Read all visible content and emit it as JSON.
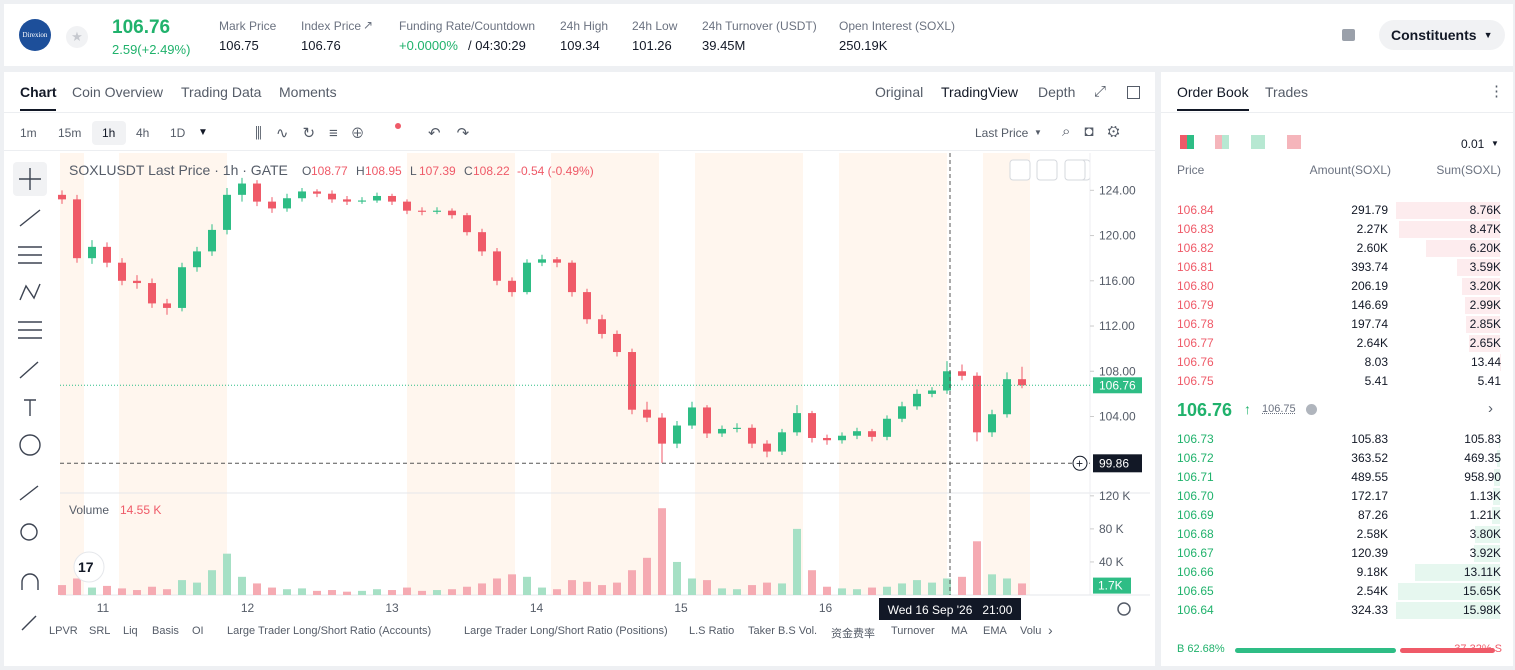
{
  "header": {
    "logo": "Direxion",
    "price": "106.76",
    "change": "2.59(+2.49%)",
    "stats": [
      {
        "label": "Mark Price",
        "value": "106.75"
      },
      {
        "label": "Index Price",
        "value": "106.76"
      },
      {
        "label": "Funding Rate/Countdown",
        "value": "+0.0000%",
        "extra": "/ 04:30:29"
      },
      {
        "label": "24h High",
        "value": "109.34"
      },
      {
        "label": "24h Low",
        "value": "101.26"
      },
      {
        "label": "24h Turnover (USDT)",
        "value": "39.45M"
      },
      {
        "label": "Open Interest (SOXL)",
        "value": "250.19K"
      }
    ],
    "button": "Constituents"
  },
  "tabs": [
    "Chart",
    "Coin Overview",
    "Trading Data",
    "Moments"
  ],
  "views": [
    "Original",
    "TradingView",
    "Depth"
  ],
  "intervals": [
    "1m",
    "15m",
    "1h",
    "4h",
    "1D"
  ],
  "price_source": "Last Price",
  "indicators": [
    "LPVR",
    "SRL",
    "Liq",
    "Basis",
    "OI",
    "Large Trader Long/Short Ratio (Accounts)",
    "Large Trader Long/Short Ratio (Positions)",
    "L.S Ratio",
    "Taker B.S Vol.",
    "资金费率",
    "Turnover",
    "MA",
    "EMA",
    "Volu"
  ],
  "chart_data": {
    "type": "candlestick",
    "title": "SOXLUSDT Last Price · 1h · GATE",
    "legend": [
      {
        "key": "O",
        "value": 108.77
      },
      {
        "key": "H",
        "value": 108.95
      },
      {
        "key": "L",
        "value": 107.39
      },
      {
        "key": "C",
        "value": 108.22
      }
    ],
    "legend_change": "-0.54 (-0.49%)",
    "up_color": "#2ebd85",
    "down_color": "#ef5a68",
    "categories": [
      "11",
      "12",
      "13",
      "14",
      "15",
      "16"
    ],
    "ohlc": [
      [
        123.6,
        124.0,
        122.8,
        123.2
      ],
      [
        123.2,
        123.6,
        117.6,
        118.0
      ],
      [
        118.0,
        119.6,
        117.5,
        119.0
      ],
      [
        119.0,
        119.4,
        117.2,
        117.6
      ],
      [
        117.6,
        118.0,
        115.6,
        116.0
      ],
      [
        116.0,
        116.5,
        115.3,
        115.8
      ],
      [
        115.8,
        116.2,
        113.6,
        114.0
      ],
      [
        114.0,
        114.4,
        113.0,
        113.6
      ],
      [
        113.6,
        117.6,
        113.3,
        117.2
      ],
      [
        117.2,
        119.0,
        116.8,
        118.6
      ],
      [
        118.6,
        121.0,
        118.2,
        120.5
      ],
      [
        120.5,
        124.2,
        120.1,
        123.6
      ],
      [
        123.6,
        125.1,
        123.0,
        124.6
      ],
      [
        124.6,
        124.9,
        122.6,
        123.0
      ],
      [
        123.0,
        123.4,
        122.0,
        122.4
      ],
      [
        122.4,
        123.7,
        122.1,
        123.3
      ],
      [
        123.3,
        124.2,
        123.0,
        123.9
      ],
      [
        123.9,
        124.1,
        123.4,
        123.7
      ],
      [
        123.7,
        124.0,
        122.9,
        123.2
      ],
      [
        123.2,
        123.5,
        122.7,
        123.0
      ],
      [
        123.0,
        123.4,
        122.8,
        123.1
      ],
      [
        123.1,
        123.8,
        122.9,
        123.5
      ],
      [
        123.5,
        123.7,
        122.7,
        123.0
      ],
      [
        123.0,
        123.2,
        121.9,
        122.2
      ],
      [
        122.2,
        122.5,
        121.8,
        122.1
      ],
      [
        122.1,
        122.5,
        121.9,
        122.2
      ],
      [
        122.2,
        122.4,
        121.5,
        121.8
      ],
      [
        121.8,
        122.0,
        120.0,
        120.3
      ],
      [
        120.3,
        120.6,
        118.2,
        118.6
      ],
      [
        118.6,
        118.9,
        115.6,
        116.0
      ],
      [
        116.0,
        116.3,
        114.6,
        115.0
      ],
      [
        115.0,
        117.9,
        114.8,
        117.6
      ],
      [
        117.6,
        118.3,
        117.3,
        117.9
      ],
      [
        117.9,
        118.1,
        117.2,
        117.6
      ],
      [
        117.6,
        117.8,
        114.6,
        115.0
      ],
      [
        115.0,
        115.3,
        112.2,
        112.6
      ],
      [
        112.6,
        113.0,
        110.9,
        111.3
      ],
      [
        111.3,
        111.6,
        109.3,
        109.7
      ],
      [
        109.7,
        110.0,
        104.2,
        104.6
      ],
      [
        104.6,
        105.3,
        103.5,
        103.9
      ],
      [
        103.9,
        104.3,
        99.9,
        101.6
      ],
      [
        101.6,
        103.6,
        101.2,
        103.2
      ],
      [
        103.2,
        105.3,
        102.9,
        104.8
      ],
      [
        104.8,
        105.0,
        102.1,
        102.5
      ],
      [
        102.5,
        103.2,
        102.2,
        102.9
      ],
      [
        102.9,
        103.4,
        102.6,
        103.0
      ],
      [
        103.0,
        103.3,
        101.2,
        101.6
      ],
      [
        101.6,
        101.9,
        100.4,
        100.9
      ],
      [
        100.9,
        102.9,
        100.6,
        102.6
      ],
      [
        102.6,
        105.0,
        102.3,
        104.3
      ],
      [
        104.3,
        104.5,
        101.7,
        102.1
      ],
      [
        102.1,
        102.4,
        101.5,
        101.9
      ],
      [
        101.9,
        102.6,
        101.6,
        102.3
      ],
      [
        102.3,
        103.0,
        102.0,
        102.7
      ],
      [
        102.7,
        102.9,
        101.8,
        102.2
      ],
      [
        102.2,
        104.1,
        101.9,
        103.8
      ],
      [
        103.8,
        105.3,
        103.5,
        104.9
      ],
      [
        104.9,
        106.4,
        104.6,
        106.0
      ],
      [
        106.0,
        106.6,
        105.7,
        106.3
      ],
      [
        106.3,
        108.9,
        106.0,
        108.0
      ],
      [
        108.0,
        108.6,
        107.2,
        107.6
      ],
      [
        107.6,
        107.9,
        101.8,
        102.6
      ],
      [
        102.6,
        104.6,
        102.2,
        104.2
      ],
      [
        104.2,
        107.9,
        103.9,
        107.3
      ],
      [
        107.3,
        108.4,
        106.5,
        106.76
      ]
    ],
    "ylim": [
      97.5,
      127.3
    ],
    "yticks": [
      {
        "value": 104,
        "label": "104.00"
      },
      {
        "value": 108,
        "label": "108.00"
      },
      {
        "value": 112,
        "label": "112.00"
      },
      {
        "value": 116,
        "label": "116.00"
      },
      {
        "value": 120,
        "label": "120.00"
      },
      {
        "value": 124,
        "label": "124.00"
      }
    ],
    "last_price": {
      "value": 106.76,
      "label": "106.76"
    },
    "crosshair": {
      "value": 99.86,
      "label": "99.86",
      "time": "Wed 16 Sep '26   21:00"
    },
    "volume": {
      "title": "Volume",
      "current": "14.55 K",
      "values": [
        12000,
        20000,
        9000,
        11000,
        8000,
        6000,
        10000,
        7000,
        18000,
        15000,
        30000,
        50000,
        22000,
        14000,
        9000,
        7000,
        8000,
        5000,
        6000,
        4000,
        5000,
        7000,
        6000,
        9000,
        5000,
        6000,
        7000,
        10000,
        14000,
        20000,
        25000,
        22000,
        9000,
        7000,
        18000,
        16000,
        12000,
        15000,
        30000,
        45000,
        105000,
        40000,
        20000,
        18000,
        8000,
        7000,
        12000,
        15000,
        14000,
        80000,
        30000,
        10000,
        8000,
        7000,
        9000,
        10000,
        14000,
        18000,
        15000,
        20000,
        22000,
        65000,
        25000,
        20000,
        14000
      ],
      "ylim": [
        0,
        121000
      ],
      "yticks": [
        {
          "value": 40000,
          "label": "40 K"
        },
        {
          "value": 80000,
          "label": "80 K"
        },
        {
          "value": 120000,
          "label": "120 K"
        }
      ],
      "last": {
        "value": 1700,
        "label": "1.7K"
      }
    }
  },
  "order_book": {
    "tabs": [
      "Order Book",
      "Trades"
    ],
    "precision": "0.01",
    "columns": [
      "Price",
      "Amount(SOXL)",
      "Sum(SOXL)"
    ],
    "asks": [
      {
        "price": "106.84",
        "amount": "291.79",
        "sum": {
          "value": 8760,
          "label": "8.76K"
        }
      },
      {
        "price": "106.83",
        "amount": "2.27K",
        "sum": {
          "value": 8470,
          "label": "8.47K"
        }
      },
      {
        "price": "106.82",
        "amount": "2.60K",
        "sum": {
          "value": 6200,
          "label": "6.20K"
        }
      },
      {
        "price": "106.81",
        "amount": "393.74",
        "sum": {
          "value": 3590,
          "label": "3.59K"
        }
      },
      {
        "price": "106.80",
        "amount": "206.19",
        "sum": {
          "value": 3200,
          "label": "3.20K"
        }
      },
      {
        "price": "106.79",
        "amount": "146.69",
        "sum": {
          "value": 2990,
          "label": "2.99K"
        }
      },
      {
        "price": "106.78",
        "amount": "197.74",
        "sum": {
          "value": 2850,
          "label": "2.85K"
        }
      },
      {
        "price": "106.77",
        "amount": "2.64K",
        "sum": {
          "value": 2650,
          "label": "2.65K"
        }
      },
      {
        "price": "106.76",
        "amount": "8.03",
        "sum": {
          "value": 13.44,
          "label": "13.44"
        }
      },
      {
        "price": "106.75",
        "amount": "5.41",
        "sum": {
          "value": 5.41,
          "label": "5.41"
        }
      }
    ],
    "mid": {
      "price": "106.76",
      "mark": "106.75"
    },
    "bids": [
      {
        "price": "106.73",
        "amount": "105.83",
        "sum": {
          "value": 105.83,
          "label": "105.83"
        }
      },
      {
        "price": "106.72",
        "amount": "363.52",
        "sum": {
          "value": 469.35,
          "label": "469.35"
        }
      },
      {
        "price": "106.71",
        "amount": "489.55",
        "sum": {
          "value": 958.9,
          "label": "958.90"
        }
      },
      {
        "price": "106.70",
        "amount": "172.17",
        "sum": {
          "value": 1130,
          "label": "1.13K"
        }
      },
      {
        "price": "106.69",
        "amount": "87.26",
        "sum": {
          "value": 1210,
          "label": "1.21K"
        }
      },
      {
        "price": "106.68",
        "amount": "2.58K",
        "sum": {
          "value": 3800,
          "label": "3.80K"
        }
      },
      {
        "price": "106.67",
        "amount": "120.39",
        "sum": {
          "value": 3920,
          "label": "3.92K"
        }
      },
      {
        "price": "106.66",
        "amount": "9.18K",
        "sum": {
          "value": 13110,
          "label": "13.11K"
        }
      },
      {
        "price": "106.65",
        "amount": "2.54K",
        "sum": {
          "value": 15650,
          "label": "15.65K"
        }
      },
      {
        "price": "106.64",
        "amount": "324.33",
        "sum": {
          "value": 15980,
          "label": "15.98K"
        }
      }
    ],
    "buy_ratio": {
      "value": 62.68,
      "label": "B 62.68%"
    },
    "sell_ratio": {
      "value": 37.32,
      "label": "37.32% S"
    }
  }
}
